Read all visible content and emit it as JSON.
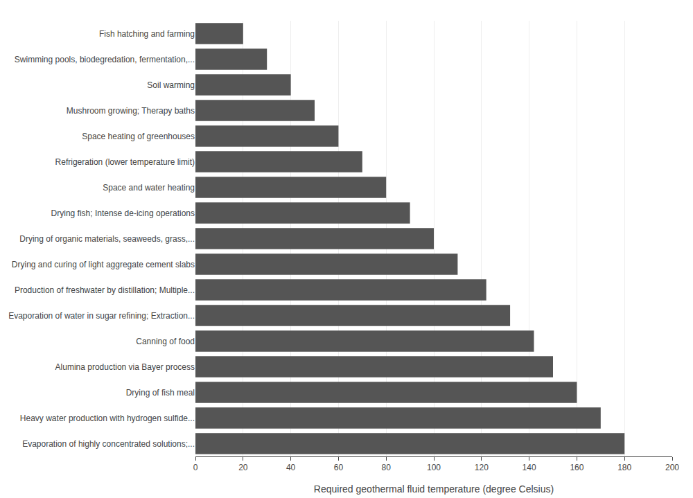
{
  "chart_data": {
    "type": "bar",
    "orientation": "horizontal",
    "categories": [
      "Evaporation of highly concentrated solutions;...",
      "Heavy water production with hydrogen sulfide...",
      "Drying of fish meal",
      "Alumina production via Bayer process",
      "Canning of food",
      "Evaporation of water in sugar refining; Extraction...",
      "Production of freshwater by distillation; Multiple...",
      "Drying and curing of light aggregate cement slabs",
      "Drying of organic materials, seaweeds, grass,...",
      "Drying fish; Intense de-icing operations",
      "Space and water heating",
      "Refrigeration (lower temperature limit)",
      "Space heating of greenhouses",
      "Mushroom growing; Therapy baths",
      "Soil warming",
      "Swimming pools, biodegredation, fermentation,...",
      "Fish hatching and farming"
    ],
    "values": [
      180,
      170,
      160,
      150,
      142,
      132,
      122,
      110,
      100,
      90,
      80,
      70,
      60,
      50,
      40,
      30,
      20
    ],
    "color": "#555555",
    "xlabel": "Required geothermal fluid temperature (degree Celsius)",
    "xlim": [
      0,
      200
    ],
    "xticks": [
      0,
      20,
      40,
      60,
      80,
      100,
      120,
      140,
      160,
      180,
      200
    ],
    "grid": true
  }
}
